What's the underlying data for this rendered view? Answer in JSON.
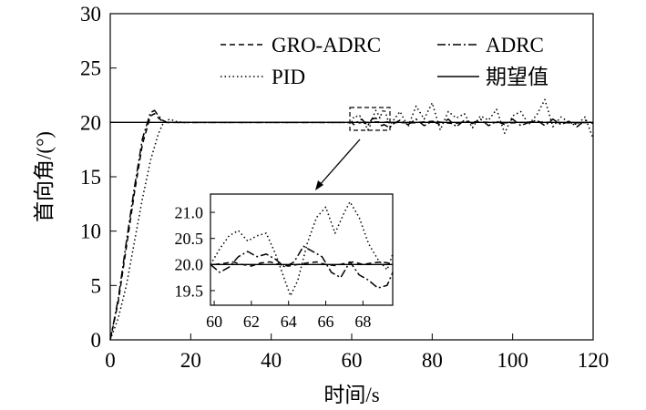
{
  "chart_data": [
    {
      "type": "line",
      "xlabel": "时间/s",
      "ylabel": "首向角/(°)",
      "xlim": [
        0,
        120
      ],
      "ylim": [
        0,
        30
      ],
      "xticks": [
        "0",
        "20",
        "40",
        "60",
        "80",
        "100",
        "120"
      ],
      "yticks": [
        "0",
        "5",
        "10",
        "15",
        "20",
        "25",
        "30"
      ],
      "grid": false,
      "legend_position": "top-right",
      "series": [
        {
          "name": "GRO-ADRC",
          "linestyle": "dashed",
          "x": [
            0,
            2,
            4,
            6,
            8,
            10,
            11,
            12,
            13,
            14,
            16,
            20,
            40,
            60,
            61,
            62,
            63,
            64,
            65,
            66,
            67,
            68,
            69,
            70,
            75,
            80,
            85,
            90,
            95,
            100,
            105,
            110,
            115,
            120
          ],
          "y": [
            0,
            3.5,
            8.5,
            13.5,
            18,
            20.6,
            20.8,
            20.4,
            20.1,
            20.0,
            20.0,
            20.0,
            20.0,
            20.0,
            20.05,
            19.95,
            20.05,
            20.0,
            19.95,
            20.05,
            20.0,
            20.0,
            20.05,
            20.0,
            19.95,
            20.1,
            19.9,
            20.05,
            20.0,
            19.95,
            20.05,
            20.0,
            19.95,
            20.0
          ]
        },
        {
          "name": "ADRC",
          "linestyle": "dashdot",
          "x": [
            0,
            2,
            4,
            6,
            8,
            10,
            11,
            12,
            13,
            14,
            16,
            20,
            40,
            60,
            60.5,
            61,
            62,
            62.5,
            63,
            64,
            64.5,
            65,
            66,
            66.5,
            67,
            67.5,
            68,
            69,
            69.5,
            70,
            72,
            74,
            76,
            78,
            80,
            82,
            84,
            86,
            88,
            90,
            92,
            94,
            96,
            98,
            100,
            102,
            104,
            106,
            108,
            110,
            112,
            114,
            116,
            118,
            120
          ],
          "y": [
            0,
            3.8,
            9,
            14,
            18.5,
            20.9,
            21.1,
            20.6,
            20.2,
            20.0,
            20.0,
            20.0,
            20.0,
            20.0,
            19.8,
            19.9,
            20.2,
            20.3,
            20.1,
            19.7,
            20.0,
            20.3,
            20.4,
            20.2,
            19.8,
            19.7,
            19.8,
            19.6,
            19.5,
            19.8,
            20.2,
            19.8,
            20.3,
            19.7,
            20.1,
            19.8,
            20.3,
            19.6,
            20.2,
            19.9,
            20.3,
            19.7,
            20.1,
            19.8,
            20.3,
            19.7,
            20.0,
            20.2,
            19.7,
            20.3,
            19.8,
            20.1,
            19.6,
            20.2,
            19.9
          ]
        },
        {
          "name": "PID",
          "linestyle": "dotted",
          "x": [
            0,
            2,
            4,
            6,
            8,
            10,
            12,
            13,
            14,
            15,
            16,
            18,
            20,
            40,
            60,
            60.5,
            61,
            61.5,
            62,
            62.5,
            63,
            63.5,
            64,
            64.5,
            65,
            65.5,
            66,
            66.5,
            67,
            67.5,
            68,
            68.5,
            69,
            69.5,
            70,
            72,
            74,
            76,
            78,
            80,
            82,
            84,
            86,
            88,
            90,
            92,
            94,
            96,
            98,
            100,
            102,
            104,
            106,
            108,
            110,
            112,
            114,
            116,
            118,
            120
          ],
          "y": [
            0,
            2,
            5,
            9,
            13,
            16.5,
            19,
            19.8,
            20.2,
            20.3,
            20.1,
            20.0,
            20.0,
            20.0,
            20.0,
            20.5,
            20.6,
            20.5,
            20.6,
            20.3,
            20.0,
            19.7,
            19.3,
            19.6,
            20.2,
            20.7,
            21.1,
            20.8,
            20.4,
            20.9,
            21.2,
            20.8,
            20.2,
            19.8,
            20.0,
            21.0,
            19.6,
            21.5,
            20.3,
            21.8,
            19.3,
            21.0,
            20.4,
            20.8,
            19.5,
            20.6,
            20.2,
            21.2,
            19.0,
            20.6,
            21.0,
            19.8,
            20.7,
            22.1,
            19.6,
            20.5,
            20.0,
            19.8,
            20.5,
            18.5
          ]
        },
        {
          "name": "期望值",
          "linestyle": "solid",
          "x": [
            0,
            120
          ],
          "y": [
            20,
            20
          ]
        }
      ]
    },
    {
      "type": "line",
      "role": "inset",
      "xlim": [
        59.8,
        69.6
      ],
      "ylim": [
        19.22,
        21.35
      ],
      "xticks": [
        "60",
        "62",
        "64",
        "66",
        "68"
      ],
      "yticks": [
        "19.5",
        "20.0",
        "20.5",
        "21.0"
      ],
      "zoom_box": {
        "x": [
          60,
          70
        ],
        "y": [
          19.2,
          21.3
        ]
      },
      "series": [
        {
          "name": "GRO-ADRC",
          "linestyle": "dashed",
          "x": [
            60,
            60.5,
            61,
            61.5,
            62,
            62.5,
            63,
            63.5,
            64,
            64.5,
            65,
            65.5,
            66,
            66.5,
            67,
            67.5,
            68,
            68.5,
            69,
            69.5
          ],
          "y": [
            20.0,
            20.02,
            20.05,
            20.0,
            19.97,
            20.03,
            20.05,
            20.0,
            19.97,
            20.0,
            20.03,
            20.05,
            20.0,
            19.98,
            20.02,
            20.05,
            20.0,
            20.03,
            20.05,
            20.02
          ]
        },
        {
          "name": "ADRC",
          "linestyle": "dashdot",
          "x": [
            59.8,
            60.3,
            60.8,
            61.3,
            61.8,
            62.3,
            62.8,
            63.3,
            63.8,
            64.3,
            64.8,
            65.3,
            65.8,
            66.3,
            66.8,
            67.3,
            67.8,
            68.3,
            68.8,
            69.3,
            69.6
          ],
          "y": [
            20.0,
            19.85,
            19.95,
            20.15,
            20.25,
            20.15,
            20.2,
            20.1,
            19.95,
            20.05,
            20.35,
            20.25,
            20.15,
            19.85,
            19.75,
            20.05,
            19.8,
            19.7,
            19.55,
            19.6,
            19.85
          ]
        },
        {
          "name": "PID",
          "linestyle": "dotted",
          "x": [
            59.8,
            60.3,
            60.8,
            61.3,
            61.8,
            62.3,
            62.8,
            63.3,
            63.8,
            64.1,
            64.5,
            65.0,
            65.5,
            66.0,
            66.5,
            67.0,
            67.3,
            67.8,
            68.3,
            68.8,
            69.3,
            69.6
          ],
          "y": [
            20.0,
            20.3,
            20.55,
            20.65,
            20.45,
            20.55,
            20.6,
            20.2,
            19.7,
            19.4,
            19.7,
            20.4,
            20.9,
            21.1,
            20.6,
            21.0,
            21.2,
            20.9,
            20.4,
            20.1,
            19.9,
            20.2
          ]
        },
        {
          "name": "期望值",
          "linestyle": "solid",
          "x": [
            59.8,
            69.6
          ],
          "y": [
            20,
            20
          ]
        }
      ]
    }
  ]
}
